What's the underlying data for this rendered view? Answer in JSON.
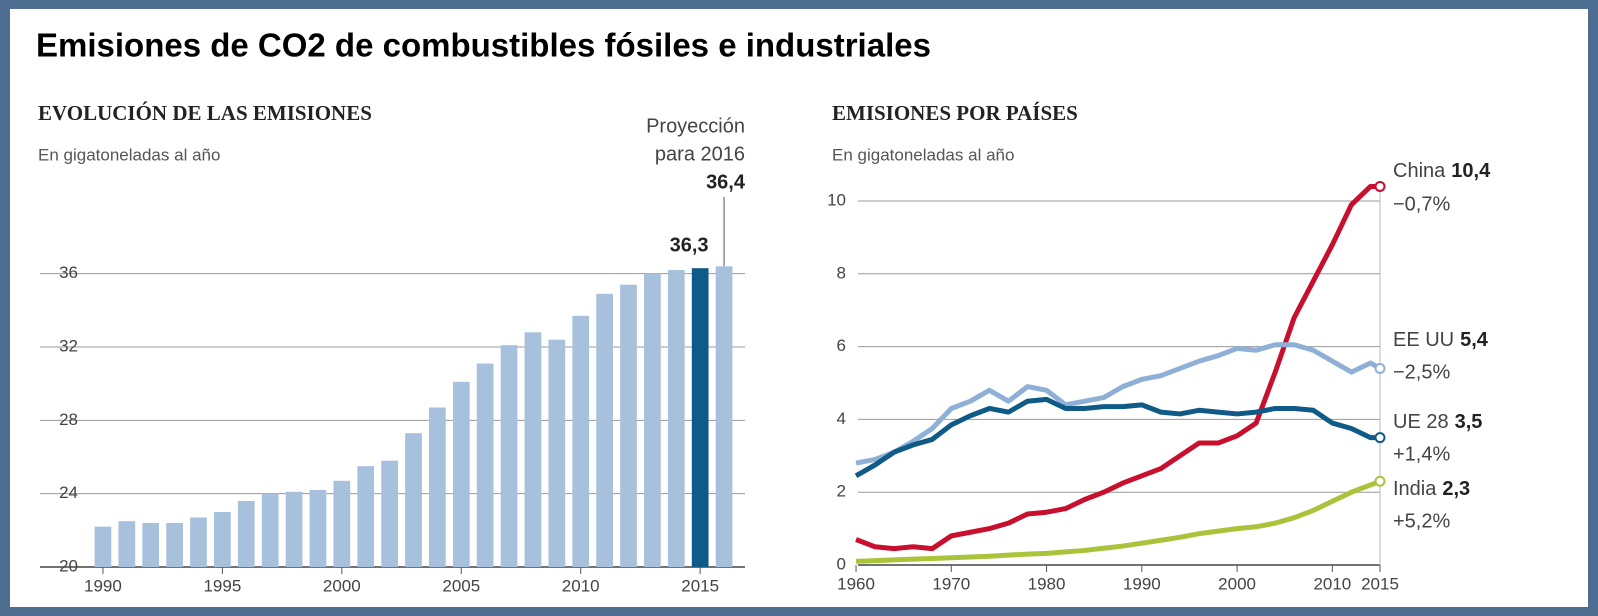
{
  "title": "Emisiones de CO2 de combustibles fósiles e industriales",
  "chart_data": [
    {
      "type": "bar",
      "title": "EVOLUCIÓN DE LAS EMISIONES",
      "subtitle": "En gigatoneladas al año",
      "annotation_lines": [
        "Proyección",
        "para 2016"
      ],
      "x": [
        1990,
        1991,
        1992,
        1993,
        1994,
        1995,
        1996,
        1997,
        1998,
        1999,
        2000,
        2001,
        2002,
        2003,
        2004,
        2005,
        2006,
        2007,
        2008,
        2009,
        2010,
        2011,
        2012,
        2013,
        2014,
        2015,
        2016
      ],
      "values": [
        22.2,
        22.5,
        22.4,
        22.4,
        22.7,
        23.0,
        23.6,
        24.0,
        24.1,
        24.2,
        24.7,
        25.5,
        25.8,
        27.3,
        28.7,
        30.1,
        31.1,
        32.1,
        32.8,
        32.4,
        33.7,
        34.9,
        35.4,
        36.0,
        36.2,
        36.3,
        36.4
      ],
      "value_labels": [
        null,
        null,
        null,
        null,
        null,
        null,
        null,
        null,
        null,
        null,
        null,
        null,
        null,
        null,
        null,
        null,
        null,
        null,
        null,
        null,
        null,
        null,
        null,
        null,
        null,
        "36,3",
        "36,4"
      ],
      "colors": [
        "#a7c0dc",
        "#a7c0dc",
        "#a7c0dc",
        "#a7c0dc",
        "#a7c0dc",
        "#a7c0dc",
        "#a7c0dc",
        "#a7c0dc",
        "#a7c0dc",
        "#a7c0dc",
        "#a7c0dc",
        "#a7c0dc",
        "#a7c0dc",
        "#a7c0dc",
        "#a7c0dc",
        "#a7c0dc",
        "#a7c0dc",
        "#a7c0dc",
        "#a7c0dc",
        "#a7c0dc",
        "#a7c0dc",
        "#a7c0dc",
        "#a7c0dc",
        "#a7c0dc",
        "#a7c0dc",
        "#0e5a88",
        "#a7c0dc"
      ],
      "xlim": [
        1989.5,
        2016.5
      ],
      "xticks": [
        1990,
        1995,
        2000,
        2005,
        2010,
        2015
      ],
      "ylim": [
        20,
        38
      ],
      "yticks": [
        20,
        24,
        28,
        32,
        36
      ],
      "grid": true
    },
    {
      "type": "line",
      "title": "EMISIONES POR PAÍSES",
      "subtitle": "En gigatoneladas al año",
      "x": [
        1960,
        1962,
        1964,
        1966,
        1968,
        1970,
        1972,
        1974,
        1976,
        1978,
        1980,
        1982,
        1984,
        1986,
        1988,
        1990,
        1992,
        1994,
        1996,
        1998,
        2000,
        2002,
        2004,
        2006,
        2008,
        2010,
        2012,
        2014,
        2015
      ],
      "series": [
        {
          "name": "China",
          "color": "#c8102e",
          "change": "−0,7%",
          "values": [
            0.7,
            0.5,
            0.45,
            0.5,
            0.45,
            0.8,
            0.9,
            1.0,
            1.15,
            1.4,
            1.45,
            1.55,
            1.8,
            2.0,
            2.25,
            2.45,
            2.65,
            3.0,
            3.35,
            3.35,
            3.55,
            3.9,
            5.3,
            6.8,
            7.8,
            8.8,
            9.9,
            10.4,
            10.4
          ],
          "value_labels": [
            null,
            null,
            null,
            null,
            null,
            null,
            null,
            null,
            null,
            null,
            null,
            null,
            null,
            null,
            null,
            null,
            null,
            null,
            null,
            null,
            null,
            null,
            null,
            null,
            null,
            null,
            null,
            null,
            "10,4"
          ]
        },
        {
          "name": "EE UU",
          "color": "#8fb0d6",
          "change": "−2,5%",
          "values": [
            2.8,
            2.9,
            3.1,
            3.4,
            3.75,
            4.3,
            4.5,
            4.8,
            4.5,
            4.9,
            4.8,
            4.4,
            4.5,
            4.6,
            4.9,
            5.1,
            5.2,
            5.4,
            5.6,
            5.75,
            5.95,
            5.9,
            6.05,
            6.05,
            5.9,
            5.6,
            5.3,
            5.55,
            5.4
          ],
          "value_labels": [
            null,
            null,
            null,
            null,
            null,
            null,
            null,
            null,
            null,
            null,
            null,
            null,
            null,
            null,
            null,
            null,
            null,
            null,
            null,
            null,
            null,
            null,
            null,
            null,
            null,
            null,
            null,
            null,
            "5,4"
          ]
        },
        {
          "name": "UE 28",
          "color": "#0f5a86",
          "change": "+1,4%",
          "values": [
            2.45,
            2.75,
            3.1,
            3.3,
            3.45,
            3.85,
            4.1,
            4.3,
            4.2,
            4.5,
            4.55,
            4.3,
            4.3,
            4.35,
            4.35,
            4.4,
            4.2,
            4.15,
            4.25,
            4.2,
            4.15,
            4.2,
            4.3,
            4.3,
            4.25,
            3.9,
            3.75,
            3.5,
            3.5
          ],
          "value_labels": [
            null,
            null,
            null,
            null,
            null,
            null,
            null,
            null,
            null,
            null,
            null,
            null,
            null,
            null,
            null,
            null,
            null,
            null,
            null,
            null,
            null,
            null,
            null,
            null,
            null,
            null,
            null,
            null,
            "3,5"
          ]
        },
        {
          "name": "India",
          "color": "#a9c43a",
          "change": "+5,2%",
          "values": [
            0.1,
            0.12,
            0.14,
            0.16,
            0.18,
            0.2,
            0.22,
            0.24,
            0.27,
            0.3,
            0.32,
            0.36,
            0.4,
            0.46,
            0.52,
            0.6,
            0.68,
            0.76,
            0.86,
            0.93,
            1.0,
            1.05,
            1.15,
            1.3,
            1.5,
            1.75,
            2.0,
            2.2,
            2.3
          ],
          "value_labels": [
            null,
            null,
            null,
            null,
            null,
            null,
            null,
            null,
            null,
            null,
            null,
            null,
            null,
            null,
            null,
            null,
            null,
            null,
            null,
            null,
            null,
            null,
            null,
            null,
            null,
            null,
            null,
            null,
            "2,3"
          ]
        }
      ],
      "xlim": [
        1959,
        2015
      ],
      "xticks": [
        1960,
        1970,
        1980,
        1990,
        2000,
        2010,
        2015
      ],
      "ylim": [
        0,
        10
      ],
      "yticks": [
        0,
        2,
        4,
        6,
        8,
        10
      ],
      "grid": true
    }
  ]
}
